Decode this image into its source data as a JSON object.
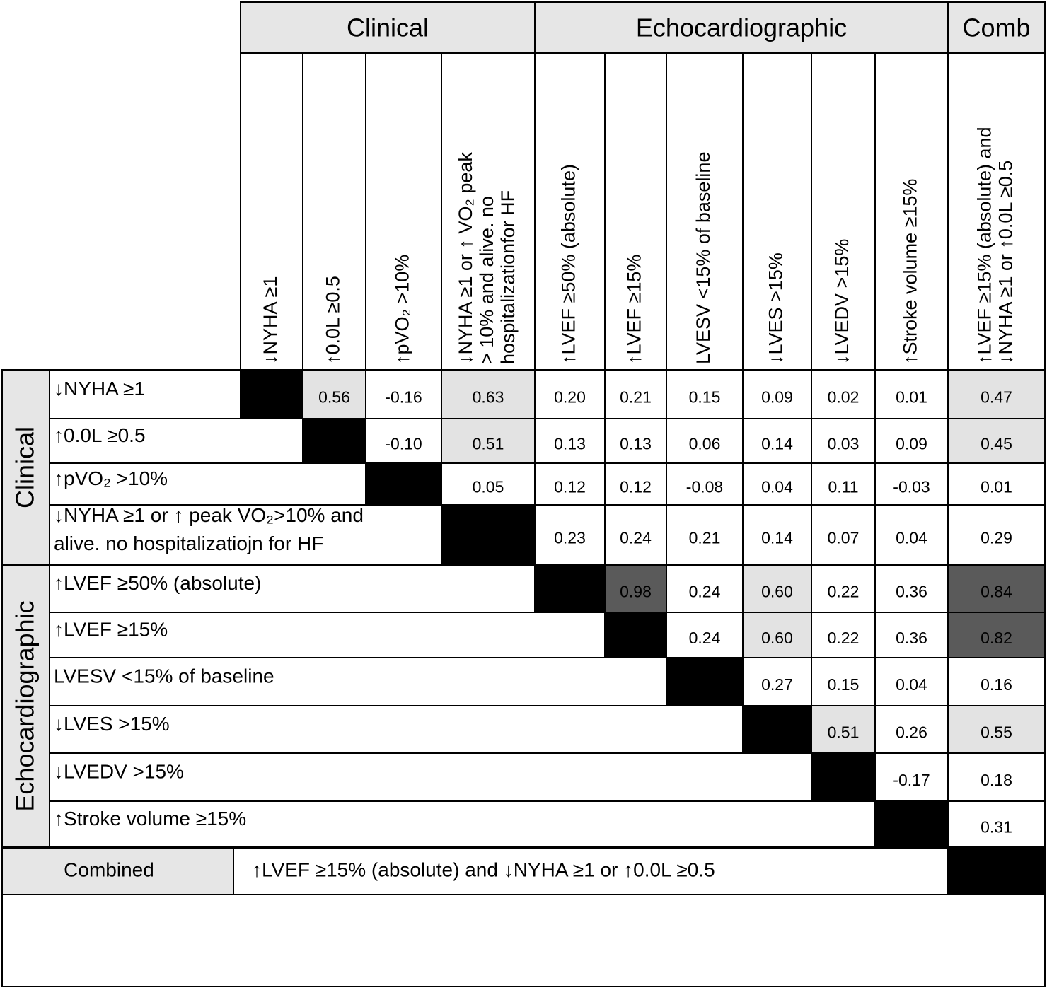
{
  "column_groups": [
    {
      "label": "Clinical"
    },
    {
      "label": "Echocardiographic"
    },
    {
      "label": "Comb"
    }
  ],
  "columns": [
    {
      "lines": [
        "↓NYHA ≥1"
      ]
    },
    {
      "lines": [
        "↑0.0L ≥0.5"
      ]
    },
    {
      "lines": [
        "↑pVO₂ >10%"
      ]
    },
    {
      "lines": [
        "↓NYHA ≥1 or ↑ VO₂ peak",
        "> 10% and alive. no",
        "hospitalizationfor HF"
      ]
    },
    {
      "lines": [
        "↑LVEF ≥50% (absolute)"
      ]
    },
    {
      "lines": [
        "↑LVEF ≥15%"
      ]
    },
    {
      "lines": [
        "LVESV <15% of baseline"
      ]
    },
    {
      "lines": [
        "↓LVES >15%"
      ]
    },
    {
      "lines": [
        "↓LVEDV >15%"
      ]
    },
    {
      "lines": [
        "↑Stroke volume ≥15%"
      ]
    },
    {
      "lines": [
        "↑LVEF ≥15% (absolute) and",
        "↓NYHA ≥1 or ↑0.0L ≥0.5"
      ]
    }
  ],
  "row_groups": [
    {
      "label": "Clinical"
    },
    {
      "label": "Echocardiographic"
    }
  ],
  "rows": [
    {
      "lines": [
        "↓NYHA ≥1"
      ],
      "cells": [
        {
          "text": "0.56",
          "shade": "#e3e3e3"
        },
        {
          "text": "-0.16"
        },
        {
          "text": "0.63",
          "shade": "#e3e3e3"
        },
        {
          "text": "0.20"
        },
        {
          "text": "0.21"
        },
        {
          "text": "0.15"
        },
        {
          "text": "0.09"
        },
        {
          "text": "0.02"
        },
        {
          "text": "0.01"
        },
        {
          "text": "0.47",
          "shade": "#e3e3e3"
        }
      ]
    },
    {
      "lines": [
        "↑0.0L ≥0.5"
      ],
      "cells": [
        {
          "text": "-0.10"
        },
        {
          "text": "0.51",
          "shade": "#e3e3e3"
        },
        {
          "text": "0.13"
        },
        {
          "text": "0.13"
        },
        {
          "text": "0.06"
        },
        {
          "text": "0.14"
        },
        {
          "text": "0.03"
        },
        {
          "text": "0.09"
        },
        {
          "text": "0.45",
          "shade": "#e3e3e3"
        }
      ]
    },
    {
      "lines": [
        "↑pVO₂ >10%"
      ],
      "cells": [
        {
          "text": "0.05"
        },
        {
          "text": "0.12"
        },
        {
          "text": "0.12"
        },
        {
          "text": "-0.08"
        },
        {
          "text": "0.04"
        },
        {
          "text": "0.11"
        },
        {
          "text": "-0.03"
        },
        {
          "text": "0.01"
        }
      ]
    },
    {
      "lines": [
        "↓NYHA ≥1 or ↑ peak VO₂>10% and",
        "alive. no hospitalizatiojn for HF"
      ],
      "cells": [
        {
          "text": "0.23"
        },
        {
          "text": "0.24"
        },
        {
          "text": "0.21"
        },
        {
          "text": "0.14"
        },
        {
          "text": "0.07"
        },
        {
          "text": "0.04"
        },
        {
          "text": "0.29"
        }
      ]
    },
    {
      "lines": [
        "↑LVEF ≥50% (absolute)"
      ],
      "cells": [
        {
          "text": "0.98",
          "shade": "#5a5a5a"
        },
        {
          "text": "0.24"
        },
        {
          "text": "0.60",
          "shade": "#e3e3e3"
        },
        {
          "text": "0.22"
        },
        {
          "text": "0.36"
        },
        {
          "text": "0.84",
          "shade": "#5a5a5a"
        }
      ]
    },
    {
      "lines": [
        "↑LVEF ≥15%"
      ],
      "cells": [
        {
          "text": "0.24"
        },
        {
          "text": "0.60",
          "shade": "#e3e3e3"
        },
        {
          "text": "0.22"
        },
        {
          "text": "0.36"
        },
        {
          "text": "0.82",
          "shade": "#5a5a5a"
        }
      ]
    },
    {
      "lines": [
        "LVESV <15% of baseline"
      ],
      "cells": [
        {
          "text": "0.27"
        },
        {
          "text": "0.15"
        },
        {
          "text": "0.04"
        },
        {
          "text": "0.16"
        }
      ]
    },
    {
      "lines": [
        "↓LVES >15%"
      ],
      "cells": [
        {
          "text": "0.51",
          "shade": "#e3e3e3"
        },
        {
          "text": "0.26"
        },
        {
          "text": "0.55",
          "shade": "#e3e3e3"
        }
      ]
    },
    {
      "lines": [
        "↓LVEDV >15%"
      ],
      "cells": [
        {
          "text": "-0.17"
        },
        {
          "text": "0.18"
        }
      ]
    },
    {
      "lines": [
        "↑Stroke volume ≥15%"
      ],
      "cells": [
        {
          "text": "0.31"
        }
      ]
    }
  ],
  "combined": {
    "label": "Combined",
    "text": "↑LVEF ≥15% (absolute) and ↓NYHA ≥1 or ↑0.0L ≥0.5"
  }
}
